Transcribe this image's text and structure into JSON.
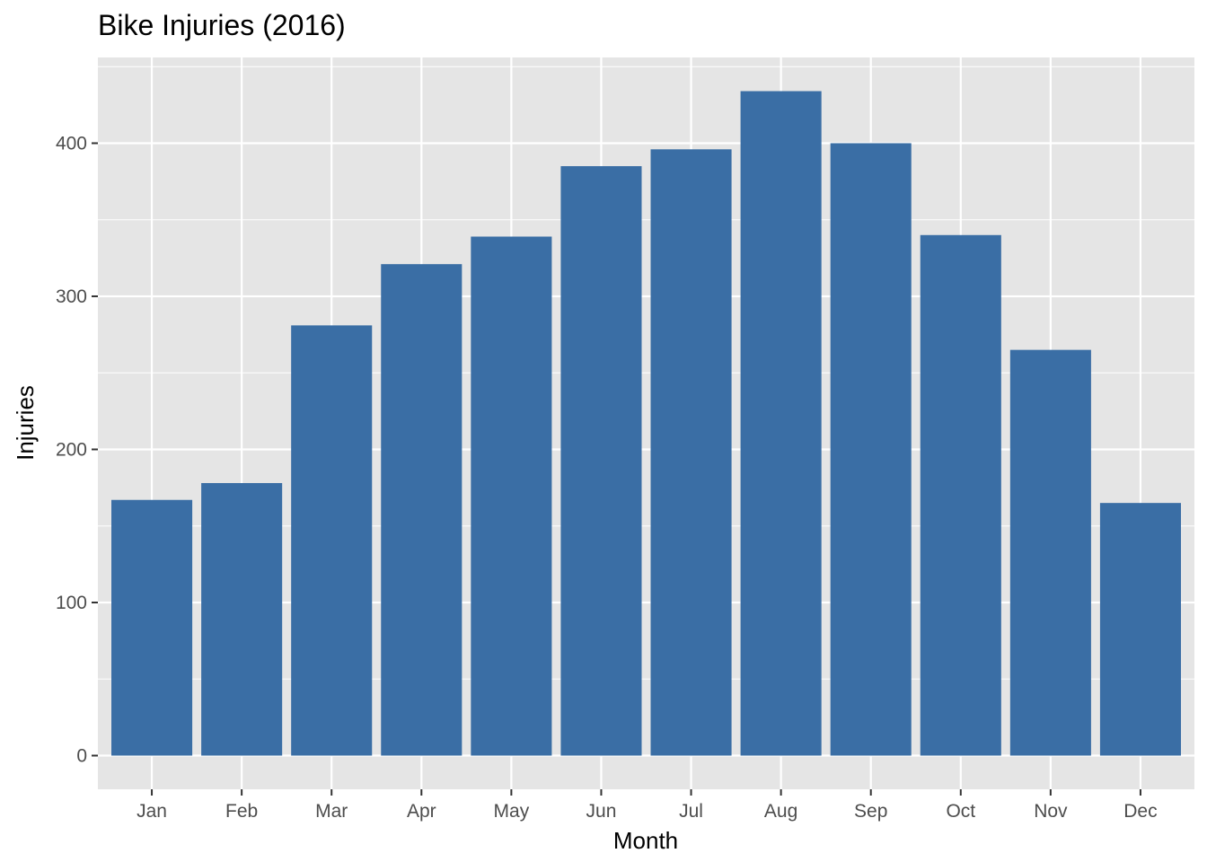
{
  "chart_data": {
    "type": "bar",
    "title": "Bike Injuries (2016)",
    "xlabel": "Month",
    "ylabel": "Injuries",
    "categories": [
      "Jan",
      "Feb",
      "Mar",
      "Apr",
      "May",
      "Jun",
      "Jul",
      "Aug",
      "Sep",
      "Oct",
      "Nov",
      "Dec"
    ],
    "values": [
      167,
      178,
      281,
      321,
      339,
      385,
      396,
      434,
      400,
      340,
      265,
      165
    ],
    "ylim": [
      -22,
      456
    ],
    "yticks": [
      0,
      100,
      200,
      300,
      400
    ],
    "grid": true,
    "colors": {
      "bar": "#3a6ea5",
      "panel": "#e5e5e5",
      "grid": "#ffffff"
    }
  }
}
